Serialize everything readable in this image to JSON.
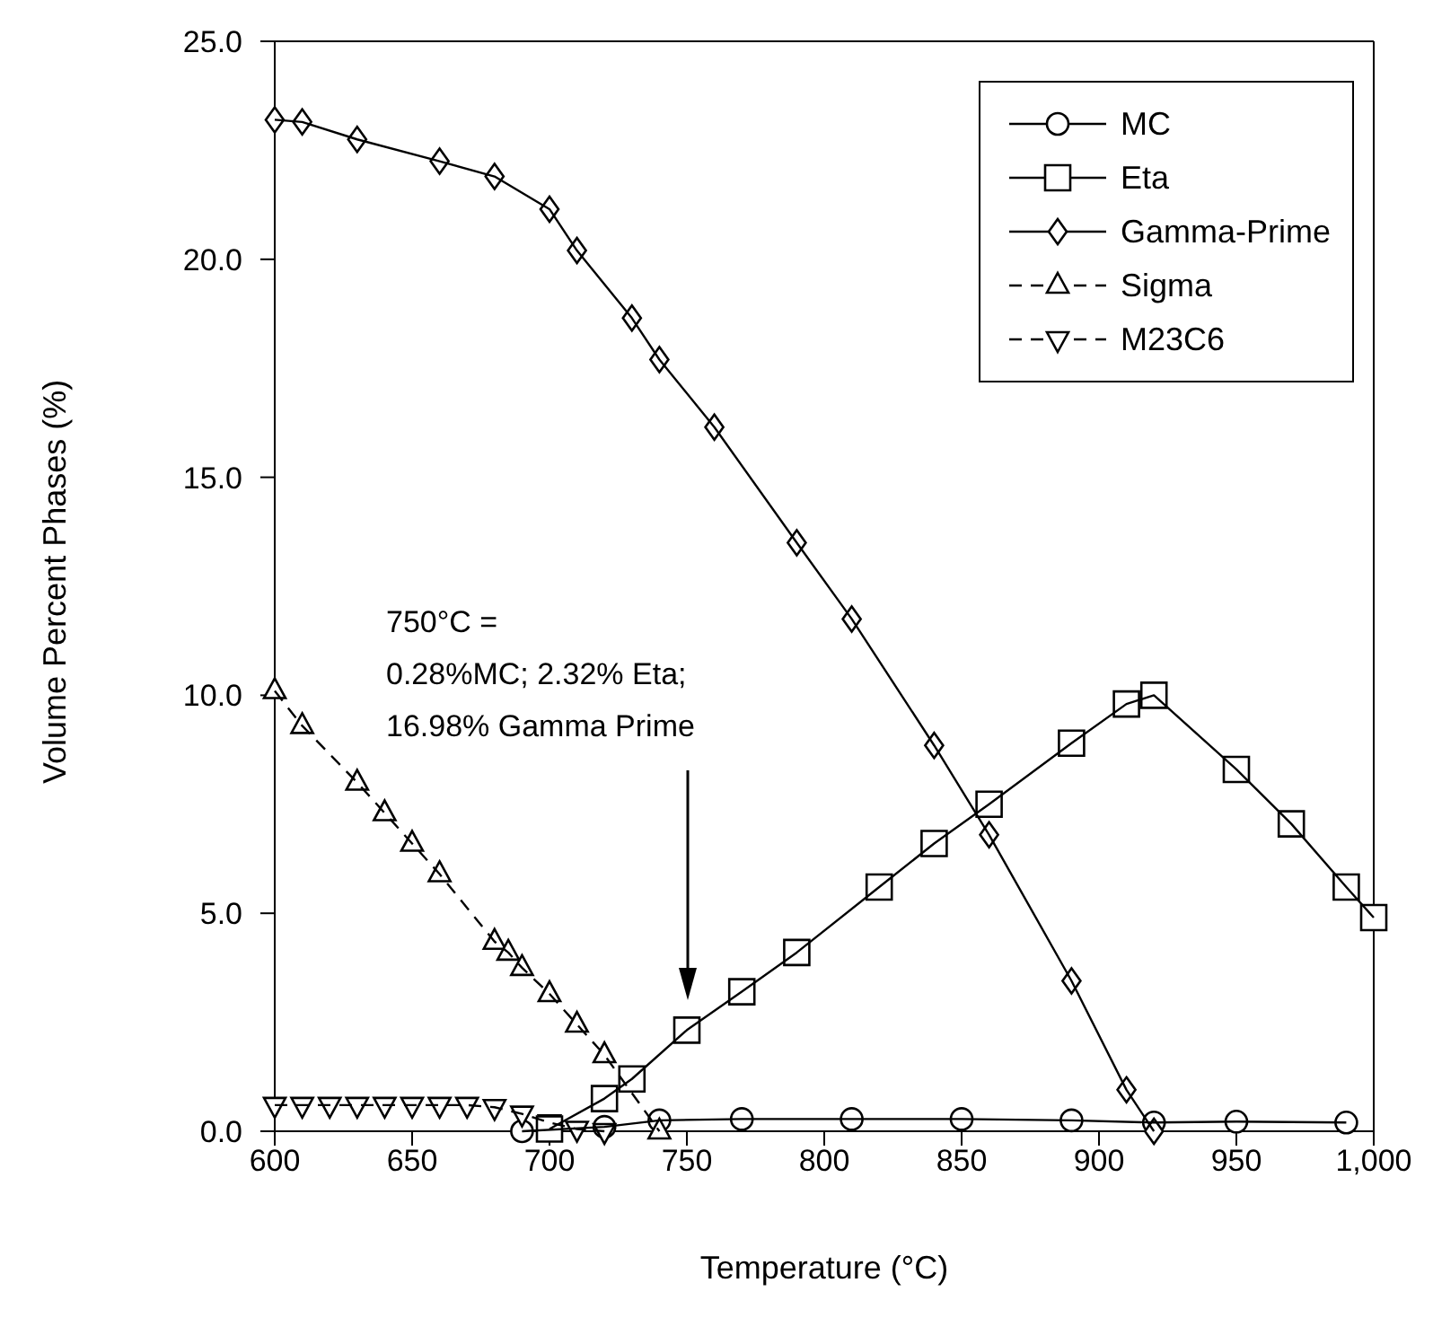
{
  "chart_data": {
    "type": "line",
    "xlabel": "Temperature (°C)",
    "ylabel": "Volume Percent Phases (%)",
    "xlim": [
      600,
      1000
    ],
    "xticks": [
      600,
      650,
      700,
      750,
      800,
      850,
      900,
      950,
      {
        "value": 1000,
        "label": "1,000"
      }
    ],
    "ylim": [
      0,
      25
    ],
    "yticks": [
      {
        "value": 0,
        "label": "0.0"
      },
      {
        "value": 5,
        "label": "5.0"
      },
      {
        "value": 10,
        "label": "10.0"
      },
      {
        "value": 15,
        "label": "15.0"
      },
      {
        "value": 20,
        "label": "20.0"
      },
      {
        "value": 25,
        "label": "25.0"
      }
    ],
    "grid": false,
    "legend": "top right",
    "series": [
      {
        "name": "MC",
        "color": "#000000",
        "marker": "circle",
        "line_style": "solid",
        "x": [
          690,
          720,
          740,
          770,
          810,
          850,
          890,
          920,
          950,
          990
        ],
        "values": [
          0,
          0.1,
          0.25,
          0.28,
          0.28,
          0.28,
          0.25,
          0.2,
          0.22,
          0.2
        ]
      },
      {
        "name": "Eta",
        "color": "#000000",
        "marker": "square",
        "line_style": "solid",
        "x": [
          700,
          720,
          730,
          750,
          770,
          790,
          820,
          840,
          860,
          890,
          910,
          920,
          950,
          970,
          990,
          1000
        ],
        "values": [
          0.05,
          0.75,
          1.2,
          2.32,
          3.2,
          4.1,
          5.6,
          6.6,
          7.5,
          8.9,
          9.8,
          10,
          8.3,
          7.05,
          5.6,
          4.9
        ]
      },
      {
        "name": "Gamma-Prime",
        "color": "#000000",
        "marker": "diamond",
        "line_style": "solid",
        "x": [
          600,
          610,
          630,
          660,
          680,
          700,
          710,
          730,
          740,
          760,
          790,
          810,
          840,
          860,
          890,
          910,
          920
        ],
        "values": [
          23.2,
          23.15,
          22.75,
          22.25,
          21.9,
          21.15,
          20.2,
          18.65,
          17.7,
          16.15,
          13.5,
          11.75,
          8.85,
          6.8,
          3.45,
          0.95,
          0
        ]
      },
      {
        "name": "Sigma",
        "color": "#000000",
        "marker": "triangle",
        "line_style": "dashed",
        "x": [
          600,
          610,
          630,
          640,
          650,
          660,
          680,
          685,
          690,
          700,
          710,
          720,
          740
        ],
        "values": [
          10.1,
          9.3,
          8.0,
          7.3,
          6.6,
          5.9,
          4.35,
          4.1,
          3.75,
          3.15,
          2.45,
          1.75,
          0
        ]
      },
      {
        "name": "M23C6",
        "color": "#000000",
        "marker": "triangle-down",
        "line_style": "dashed",
        "x": [
          600,
          610,
          620,
          630,
          640,
          650,
          660,
          670,
          680,
          690,
          700,
          710,
          720
        ],
        "values": [
          0.6,
          0.6,
          0.6,
          0.6,
          0.6,
          0.6,
          0.6,
          0.6,
          0.55,
          0.4,
          0.2,
          0.05,
          0
        ]
      }
    ],
    "annotations": [
      "750°C =\n0.28%MC; 2.32% Eta;\n16.98% Gamma Prime"
    ]
  }
}
